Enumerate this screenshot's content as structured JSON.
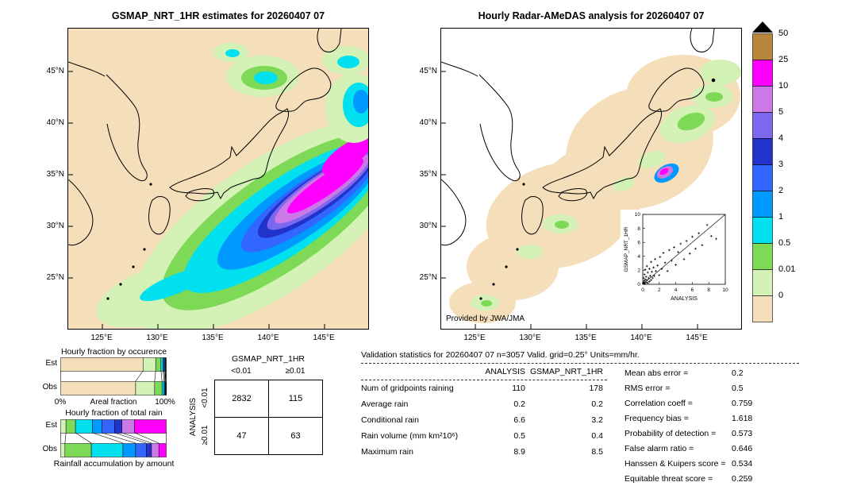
{
  "chart_data": [
    {
      "id": "gsmap_map",
      "type": "heatmap",
      "title": "GSMAP_NRT_1HR estimates for 20260407 07",
      "x_ticks": [
        "125°E",
        "130°E",
        "135°E",
        "140°E",
        "145°E"
      ],
      "y_ticks": [
        "45°N",
        "40°N",
        "35°N",
        "30°N",
        "25°N"
      ],
      "units": "mm/hr"
    },
    {
      "id": "radar_amedas_map",
      "type": "heatmap",
      "title": "Hourly Radar-AMeDAS analysis for 20260407 07",
      "x_ticks": [
        "125°E",
        "130°E",
        "135°E",
        "140°E",
        "145°E"
      ],
      "y_ticks": [
        "45°N",
        "40°N",
        "35°N",
        "30°N",
        "25°N"
      ],
      "credit": "Provided by JWA/JMA",
      "units": "mm/hr"
    },
    {
      "id": "colorbar",
      "type": "legend",
      "tick_labels": [
        "50",
        "25",
        "10",
        "5",
        "4",
        "3",
        "2",
        "1",
        "0.5",
        "0.01",
        "0"
      ],
      "colors": [
        "#b8873b",
        "#ff00ff",
        "#cc79e8",
        "#7b68ee",
        "#2233cc",
        "#3366ff",
        "#0099ff",
        "#00e0ee",
        "#7ed957",
        "#d4f2b6",
        "#f5dfba"
      ],
      "overflow_color": "#000000"
    },
    {
      "id": "scatter_inset",
      "type": "scatter",
      "xlabel": "ANALYSIS",
      "ylabel": "GSMAP_NRT_1HR",
      "xlim": [
        0,
        10
      ],
      "ylim": [
        0,
        10
      ],
      "x_ticks": [
        0,
        2,
        4,
        6,
        8,
        10
      ],
      "y_ticks": [
        0,
        2,
        4,
        6,
        8,
        10
      ],
      "diagonal": true,
      "points": [
        [
          0.05,
          0.1
        ],
        [
          0.1,
          0.3
        ],
        [
          0.1,
          0.9
        ],
        [
          0.15,
          0.2
        ],
        [
          0.2,
          0.5
        ],
        [
          0.2,
          1.4
        ],
        [
          0.25,
          0.1
        ],
        [
          0.3,
          0.7
        ],
        [
          0.3,
          2.1
        ],
        [
          0.4,
          0.3
        ],
        [
          0.4,
          1.1
        ],
        [
          0.5,
          0.6
        ],
        [
          0.5,
          2.6
        ],
        [
          0.6,
          0.2
        ],
        [
          0.6,
          1.7
        ],
        [
          0.7,
          0.9
        ],
        [
          0.8,
          0.4
        ],
        [
          0.8,
          2.2
        ],
        [
          0.9,
          1.2
        ],
        [
          1.0,
          0.6
        ],
        [
          1.0,
          3.2
        ],
        [
          1.1,
          1.8
        ],
        [
          1.2,
          0.9
        ],
        [
          1.3,
          2.4
        ],
        [
          1.4,
          1.2
        ],
        [
          1.5,
          3.6
        ],
        [
          1.6,
          1.9
        ],
        [
          1.8,
          2.7
        ],
        [
          2.0,
          1.3
        ],
        [
          2.1,
          3.9
        ],
        [
          2.3,
          2.2
        ],
        [
          2.5,
          4.5
        ],
        [
          2.7,
          3.1
        ],
        [
          3.0,
          1.9
        ],
        [
          3.2,
          4.9
        ],
        [
          3.5,
          3.4
        ],
        [
          3.8,
          5.3
        ],
        [
          4.0,
          2.8
        ],
        [
          4.3,
          4.6
        ],
        [
          4.6,
          5.8
        ],
        [
          5.0,
          3.6
        ],
        [
          5.3,
          6.2
        ],
        [
          5.7,
          4.4
        ],
        [
          6.0,
          6.8
        ],
        [
          6.4,
          5.1
        ],
        [
          6.8,
          7.3
        ],
        [
          7.2,
          5.6
        ],
        [
          7.8,
          8.5
        ],
        [
          8.3,
          6.9
        ],
        [
          8.9,
          6.5
        ]
      ]
    },
    {
      "id": "occurrence_fraction",
      "type": "bar",
      "title": "Hourly fraction by occurence",
      "orientation": "horizontal-stacked",
      "categories": [
        "Est",
        "Obs"
      ],
      "axis": {
        "left": "0%",
        "label": "Areal fraction",
        "right": "100%"
      },
      "colors": [
        "#f5dfba",
        "#d4f2b6",
        "#7ed957",
        "#00e0ee",
        "#0099ff",
        "#3366ff",
        "#2233cc",
        "#cc79e8",
        "#ff00ff"
      ],
      "est_fractions": [
        0.78,
        0.12,
        0.05,
        0.02,
        0.01,
        0.008,
        0.005,
        0.004,
        0.003
      ],
      "obs_fractions": [
        0.71,
        0.18,
        0.07,
        0.02,
        0.008,
        0.005,
        0.003,
        0.002,
        0.002
      ]
    },
    {
      "id": "totalrain_fraction",
      "type": "bar",
      "title": "Hourly fraction of total rain",
      "orientation": "horizontal-stacked",
      "caption": "Rainfall accumulation by amount",
      "categories": [
        "Est",
        "Obs"
      ],
      "colors": [
        "#d4f2b6",
        "#7ed957",
        "#00e0ee",
        "#0099ff",
        "#3366ff",
        "#2233cc",
        "#cc79e8",
        "#ff00ff"
      ],
      "est_fractions": [
        0.05,
        0.09,
        0.16,
        0.09,
        0.12,
        0.07,
        0.12,
        0.3
      ],
      "obs_fractions": [
        0.04,
        0.25,
        0.3,
        0.12,
        0.1,
        0.05,
        0.07,
        0.07
      ]
    },
    {
      "id": "contingency_table",
      "type": "table",
      "col_group": "GSMAP_NRT_1HR",
      "row_group": "ANALYSIS",
      "col_labels": [
        "<0.01",
        "≥0.01"
      ],
      "row_labels": [
        "<0.01",
        "≥0.01"
      ],
      "values": [
        [
          2832,
          115
        ],
        [
          47,
          63
        ]
      ]
    },
    {
      "id": "validation_stats",
      "type": "table",
      "header": "Validation statistics for 20260407 07  n=3057 Valid. grid=0.25° Units=mm/hr.",
      "columns": [
        "ANALYSIS",
        "GSMAP_NRT_1HR"
      ],
      "rows": [
        {
          "label": "Num of gridpoints raining",
          "analysis": "110",
          "gsmap": "178"
        },
        {
          "label": "Average rain",
          "analysis": "0.2",
          "gsmap": "0.2"
        },
        {
          "label": "Conditional rain",
          "analysis": "6.6",
          "gsmap": "3.2"
        },
        {
          "label": "Rain volume (mm km²10⁶)",
          "analysis": "0.5",
          "gsmap": "0.4"
        },
        {
          "label": "Maximum rain",
          "analysis": "8.9",
          "gsmap": "8.5"
        }
      ],
      "scores": [
        {
          "label": "Mean abs error =",
          "value": "0.2"
        },
        {
          "label": "RMS error =",
          "value": "0.5"
        },
        {
          "label": "Correlation coeff =",
          "value": "0.759"
        },
        {
          "label": "Frequency bias =",
          "value": "1.618"
        },
        {
          "label": "Probability of detection =",
          "value": "0.573"
        },
        {
          "label": "False alarm ratio =",
          "value": "0.646"
        },
        {
          "label": "Hanssen & Kuipers score =",
          "value": "0.534"
        },
        {
          "label": "Equitable threat score =",
          "value": "0.259"
        }
      ]
    }
  ]
}
